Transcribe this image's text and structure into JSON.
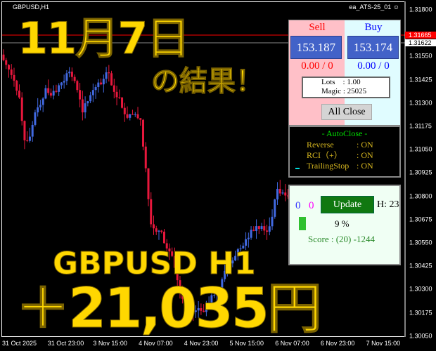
{
  "window": {
    "symbol": "GBPUSD,H1",
    "expert": "ea_ATS-25_01",
    "expert_icon": "smiley-icon"
  },
  "overlay": {
    "date": "11月7日",
    "subtitle": "の結果！",
    "pair": "GBPUSD H1",
    "profit": "＋21,035円"
  },
  "price_axis": {
    "labels": [
      "1.31800",
      "1.31550",
      "1.31425",
      "1.31300",
      "1.31175",
      "1.31050",
      "1.30925",
      "1.30800",
      "1.30675",
      "1.30550",
      "1.30425",
      "1.30300",
      "1.30175",
      "1.30050"
    ],
    "bid": "1.31665",
    "ask": "1.31622"
  },
  "time_axis": {
    "labels": [
      "31 Oct 2025",
      "31 Oct 23:00",
      "3 Nov 15:00",
      "4 Nov 07:00",
      "4 Nov 23:00",
      "5 Nov 15:00",
      "6 Nov 07:00",
      "6 Nov 23:00",
      "7 Nov 15:00"
    ]
  },
  "trade_panel": {
    "sell_label": "Sell",
    "buy_label": "Buy",
    "sell_price": "153.187",
    "buy_price": "153.174",
    "sell_pl": "0.00 / 0",
    "buy_pl": "0.00 / 0",
    "lots": "Lots    : 1.00",
    "magic": "Magic : 25025",
    "all_close": "All Close",
    "colors": {
      "sell": "#ff0000",
      "buy": "#0000ff"
    }
  },
  "autoclose_panel": {
    "title": "- AutoClose -",
    "rows": [
      {
        "label": "Reverse",
        "value": ": ON"
      },
      {
        "label": "RCI（+）",
        "value": ": ON"
      },
      {
        "label": "TrailingStop",
        "value": ": ON"
      }
    ]
  },
  "status_panel": {
    "count_a": "0",
    "count_b": "0",
    "update": "Update",
    "hour": "H: 23",
    "progress_percent": 9,
    "progress_label": "9 %",
    "score": "Score : (20) -1244"
  },
  "chart_data": {
    "type": "candlestick",
    "colors": {
      "up": "#4169e1",
      "down": "#e8173c"
    },
    "ylim": [
      1.3002,
      1.3187
    ],
    "closes": [
      1.3153,
      1.3148,
      1.3142,
      1.3133,
      1.311,
      1.3112,
      1.3125,
      1.3129,
      1.3138,
      1.3134,
      1.3136,
      1.3141,
      1.3146,
      1.3144,
      1.3137,
      1.3125,
      1.3131,
      1.3137,
      1.3141,
      1.3143,
      1.3146,
      1.3136,
      1.3133,
      1.3124,
      1.3124,
      1.3124,
      1.3121,
      1.3095,
      1.3065,
      1.3061,
      1.3061,
      1.3052,
      1.3048,
      1.3035,
      1.3025,
      1.302,
      1.3018,
      1.302,
      1.3018,
      1.3023,
      1.3027,
      1.3031,
      1.304,
      1.3044,
      1.3048,
      1.3052,
      1.3057,
      1.3062,
      1.3064,
      1.3064,
      1.3061,
      1.3069,
      1.3084,
      1.3082,
      1.308
    ]
  }
}
